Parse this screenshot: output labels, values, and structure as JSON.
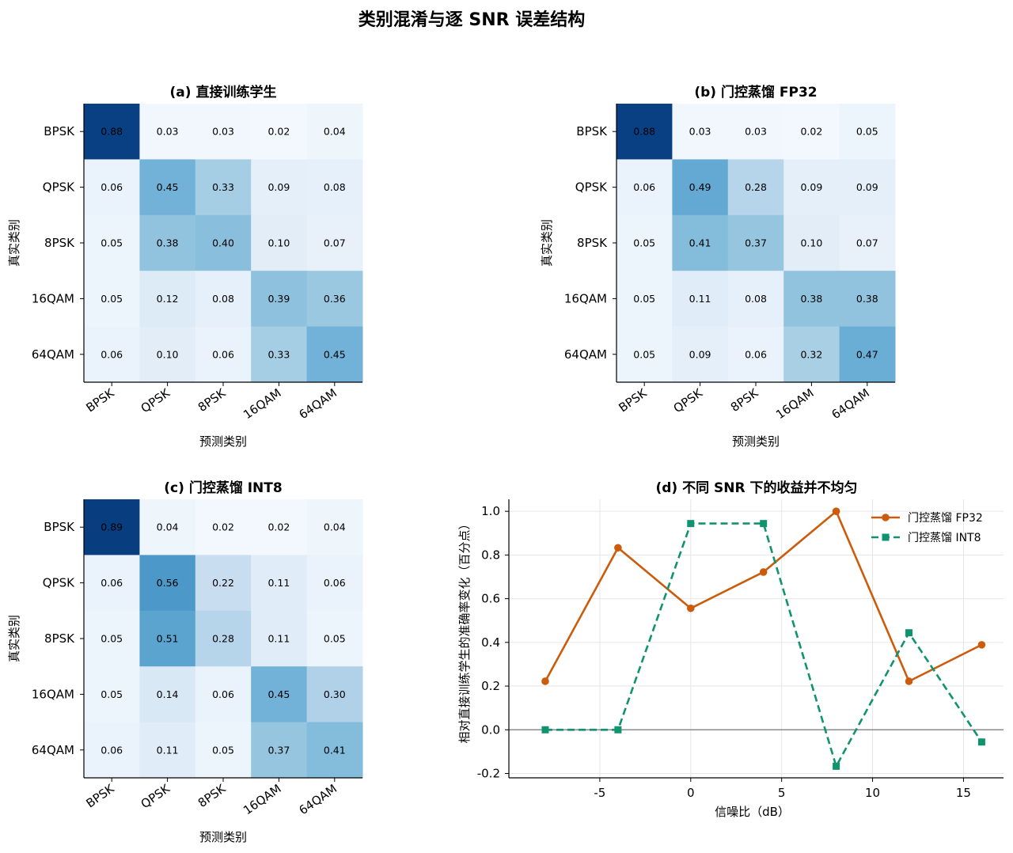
{
  "figure": {
    "title": "类别混淆与逐 SNR 误差结构"
  },
  "colors": {
    "fp32": "#cc5c0c",
    "int8": "#12936f",
    "zero_line": "#777777",
    "grid": "#e6e6e6"
  },
  "chart_data": [
    {
      "type": "heatmap",
      "title": "(a) 直接训练学生",
      "xlabel": "预测类别",
      "ylabel": "真实类别",
      "x_categories": [
        "BPSK",
        "QPSK",
        "8PSK",
        "16QAM",
        "64QAM"
      ],
      "y_categories": [
        "BPSK",
        "QPSK",
        "8PSK",
        "16QAM",
        "64QAM"
      ],
      "values": [
        [
          0.88,
          0.03,
          0.03,
          0.02,
          0.04
        ],
        [
          0.06,
          0.45,
          0.33,
          0.09,
          0.08
        ],
        [
          0.05,
          0.38,
          0.4,
          0.1,
          0.07
        ],
        [
          0.05,
          0.12,
          0.08,
          0.39,
          0.36
        ],
        [
          0.06,
          0.1,
          0.06,
          0.33,
          0.45
        ]
      ],
      "colormap": "Blues",
      "vmin": 0,
      "vmax": 0.89
    },
    {
      "type": "heatmap",
      "title": "(b) 门控蒸馏 FP32",
      "xlabel": "预测类别",
      "ylabel": "真实类别",
      "x_categories": [
        "BPSK",
        "QPSK",
        "8PSK",
        "16QAM",
        "64QAM"
      ],
      "y_categories": [
        "BPSK",
        "QPSK",
        "8PSK",
        "16QAM",
        "64QAM"
      ],
      "values": [
        [
          0.88,
          0.03,
          0.03,
          0.02,
          0.05
        ],
        [
          0.06,
          0.49,
          0.28,
          0.09,
          0.09
        ],
        [
          0.05,
          0.41,
          0.37,
          0.1,
          0.07
        ],
        [
          0.05,
          0.11,
          0.08,
          0.38,
          0.38
        ],
        [
          0.05,
          0.09,
          0.06,
          0.32,
          0.47
        ]
      ],
      "colormap": "Blues",
      "vmin": 0,
      "vmax": 0.89
    },
    {
      "type": "heatmap",
      "title": "(c) 门控蒸馏 INT8",
      "xlabel": "预测类别",
      "ylabel": "真实类别",
      "x_categories": [
        "BPSK",
        "QPSK",
        "8PSK",
        "16QAM",
        "64QAM"
      ],
      "y_categories": [
        "BPSK",
        "QPSK",
        "8PSK",
        "16QAM",
        "64QAM"
      ],
      "values": [
        [
          0.89,
          0.04,
          0.02,
          0.02,
          0.04
        ],
        [
          0.06,
          0.56,
          0.22,
          0.11,
          0.06
        ],
        [
          0.05,
          0.51,
          0.28,
          0.11,
          0.05
        ],
        [
          0.05,
          0.14,
          0.06,
          0.45,
          0.3
        ],
        [
          0.06,
          0.11,
          0.05,
          0.37,
          0.41
        ]
      ],
      "colormap": "Blues",
      "vmin": 0,
      "vmax": 0.89
    },
    {
      "type": "line",
      "title": "(d) 不同 SNR 下的收益并不均匀",
      "xlabel": "信噪比（dB）",
      "ylabel": "相对直接训练学生的准确率变化（百分点）",
      "xlim": [
        -10,
        17.2
      ],
      "ylim": [
        -0.22,
        1.055
      ],
      "xticks": [
        -5,
        0,
        5,
        10,
        15
      ],
      "yticks": [
        -0.2,
        0.0,
        0.2,
        0.4,
        0.6,
        0.8,
        1.0
      ],
      "grid": true,
      "legend": "top-right",
      "x": [
        -8,
        -4,
        0,
        4,
        8,
        12,
        16
      ],
      "series": [
        {
          "name": "门控蒸馏 FP32",
          "values": [
            0.222,
            0.833,
            0.556,
            0.722,
            1.0,
            0.222,
            0.389
          ],
          "style": "solid",
          "marker": "circle",
          "color": "#cc5c0c"
        },
        {
          "name": "门控蒸馏 INT8",
          "values": [
            0.0,
            0.0,
            0.944,
            0.944,
            -0.167,
            0.444,
            -0.056
          ],
          "style": "dashed",
          "marker": "square",
          "color": "#12936f"
        }
      ]
    }
  ]
}
